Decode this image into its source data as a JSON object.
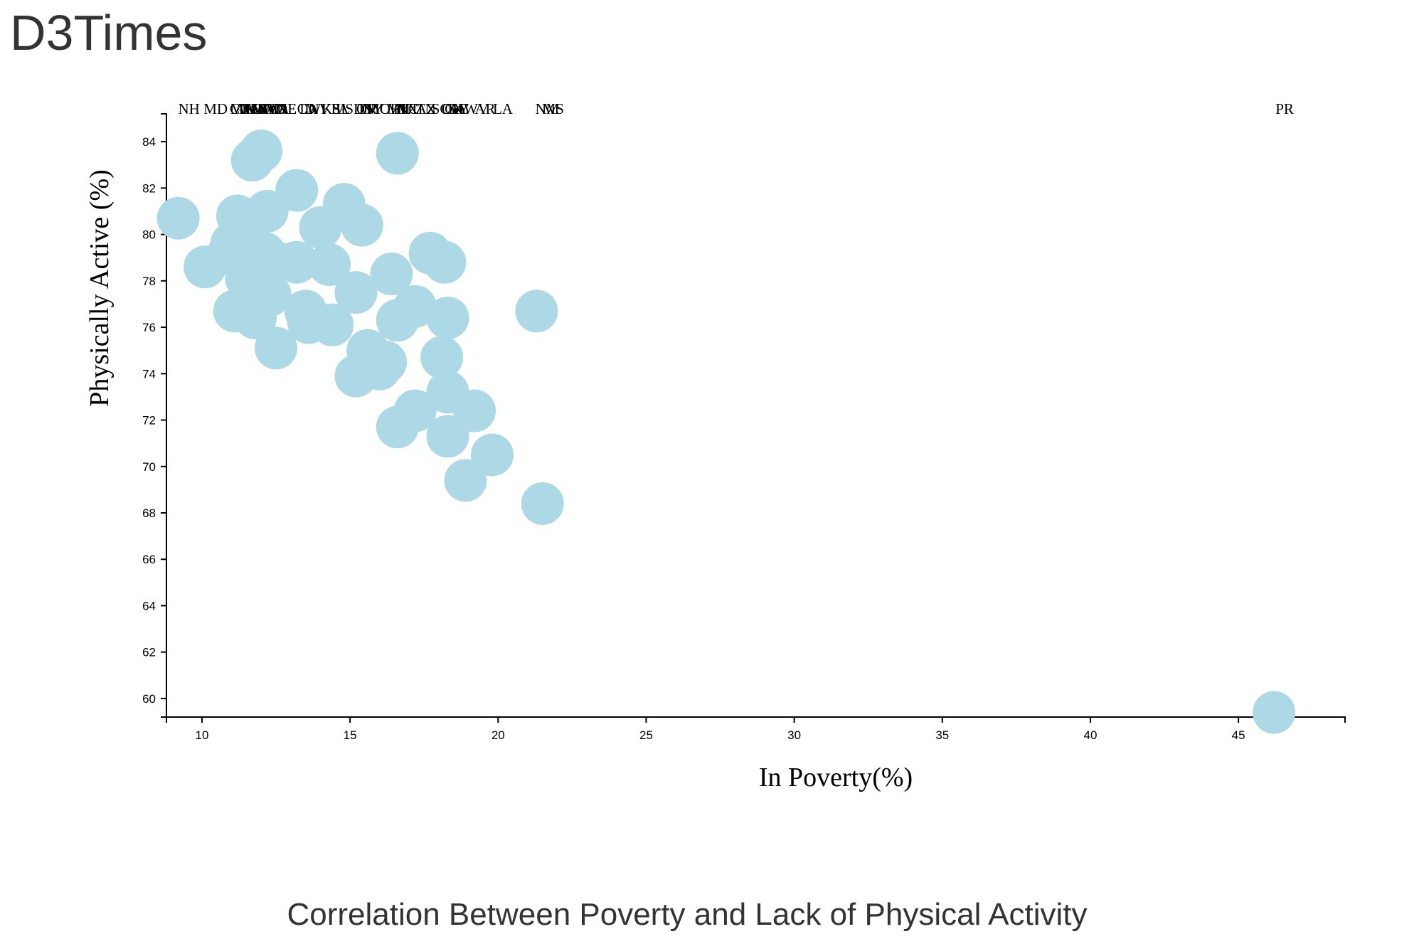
{
  "header": {
    "title": "D3Times"
  },
  "caption": "Correlation Between Poverty and Lack of Physical Activity",
  "colors": {
    "point_fill": "#add8e6",
    "axis": "#000000",
    "title_text": "#333333"
  },
  "chart_data": {
    "type": "scatter",
    "title": "",
    "xlabel": "In Poverty(%)",
    "ylabel": "Physically Active (%)",
    "xlim": [
      8.8,
      48.6
    ],
    "ylim": [
      59.2,
      85.2
    ],
    "xticks": [
      10,
      15,
      20,
      25,
      30,
      35,
      40,
      45
    ],
    "yticks": [
      60,
      62,
      64,
      66,
      68,
      70,
      72,
      74,
      76,
      78,
      80,
      82,
      84
    ],
    "grid": false,
    "legend": "none",
    "labels_position": "top",
    "points": [
      {
        "label": "NH",
        "x": 9.2,
        "y": 80.7
      },
      {
        "label": "MD",
        "x": 10.1,
        "y": 78.6
      },
      {
        "label": "CT",
        "x": 10.9,
        "y": 79.2
      },
      {
        "label": "MN",
        "x": 11.0,
        "y": 79.6
      },
      {
        "label": "AK",
        "x": 11.1,
        "y": 76.7
      },
      {
        "label": "NJ",
        "x": 11.2,
        "y": 80.8
      },
      {
        "label": "UT",
        "x": 11.4,
        "y": 79.8
      },
      {
        "label": "VA",
        "x": 11.5,
        "y": 78.1
      },
      {
        "label": "HI",
        "x": 11.6,
        "y": 77.4
      },
      {
        "label": "MA",
        "x": 11.7,
        "y": 76.8
      },
      {
        "label": "WY",
        "x": 11.8,
        "y": 76.4
      },
      {
        "label": "CO",
        "x": 11.7,
        "y": 83.2
      },
      {
        "label": "VT",
        "x": 12.0,
        "y": 83.6
      },
      {
        "label": "ND",
        "x": 12.1,
        "y": 79.2
      },
      {
        "label": "WA",
        "x": 12.2,
        "y": 81.0
      },
      {
        "label": "IA",
        "x": 12.3,
        "y": 77.4
      },
      {
        "label": "NE",
        "x": 12.5,
        "y": 78.8
      },
      {
        "label": "DE",
        "x": 12.5,
        "y": 75.1
      },
      {
        "label": "ID",
        "x": 13.2,
        "y": 78.8
      },
      {
        "label": "CA",
        "x": 13.2,
        "y": 81.9
      },
      {
        "label": "WI",
        "x": 13.5,
        "y": 76.7
      },
      {
        "label": "NV",
        "x": 13.6,
        "y": 76.2
      },
      {
        "label": "KS",
        "x": 14.0,
        "y": 80.3
      },
      {
        "label": "PA",
        "x": 14.3,
        "y": 78.7
      },
      {
        "label": "IL",
        "x": 14.4,
        "y": 76.1
      },
      {
        "label": "SD",
        "x": 14.8,
        "y": 81.3
      },
      {
        "label": "OR",
        "x": 15.2,
        "y": 77.5
      },
      {
        "label": "NY",
        "x": 15.4,
        "y": 80.4
      },
      {
        "label": "IN",
        "x": 15.2,
        "y": 73.9
      },
      {
        "label": "MO",
        "x": 15.6,
        "y": 75.0
      },
      {
        "label": "OH",
        "x": 16.0,
        "y": 74.2
      },
      {
        "label": "MI",
        "x": 16.2,
        "y": 74.5
      },
      {
        "label": "FL",
        "x": 16.4,
        "y": 78.3
      },
      {
        "label": "MT",
        "x": 16.6,
        "y": 83.5
      },
      {
        "label": "TX",
        "x": 16.6,
        "y": 76.3
      },
      {
        "label": "NC",
        "x": 16.6,
        "y": 71.7
      },
      {
        "label": "TN",
        "x": 17.2,
        "y": 72.4
      },
      {
        "label": "AZ",
        "x": 17.2,
        "y": 76.9
      },
      {
        "label": "SC",
        "x": 17.7,
        "y": 79.2
      },
      {
        "label": "OK",
        "x": 18.1,
        "y": 74.7
      },
      {
        "label": "GA",
        "x": 18.2,
        "y": 78.8
      },
      {
        "label": "KY",
        "x": 18.3,
        "y": 73.2
      },
      {
        "label": "AL",
        "x": 18.3,
        "y": 71.3
      },
      {
        "label": "DC",
        "x": 18.3,
        "y": 76.4
      },
      {
        "label": "LA",
        "x": 19.8,
        "y": 70.5
      },
      {
        "label": "AR",
        "x": 19.2,
        "y": 72.4
      },
      {
        "label": "WV",
        "x": 18.9,
        "y": 69.4
      },
      {
        "label": "NM",
        "x": 21.3,
        "y": 76.7
      },
      {
        "label": "MS",
        "x": 21.5,
        "y": 68.4
      },
      {
        "label": "PR",
        "x": 46.2,
        "y": 59.4
      }
    ]
  }
}
